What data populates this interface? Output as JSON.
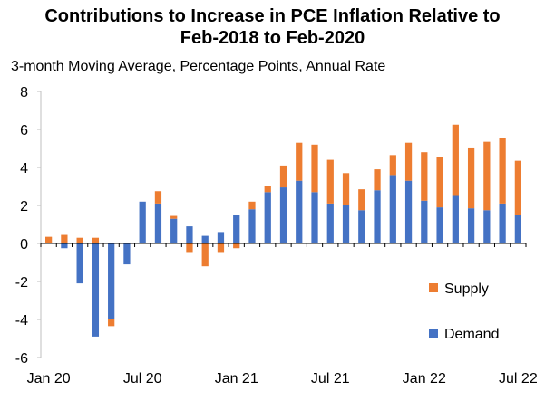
{
  "chart_data": {
    "type": "bar",
    "stacked": true,
    "title_line1": "Contributions to Increase in PCE Inflation Relative to",
    "title_line2": "Feb-2018 to Feb-2020",
    "subtitle": "3-month Moving Average, Percentage Points, Annual Rate",
    "ylim": [
      -6,
      8
    ],
    "yticks": [
      "8",
      "6",
      "4",
      "2",
      "0",
      "-2",
      "-4",
      "-6"
    ],
    "ytick_values": [
      8,
      6,
      4,
      2,
      0,
      -2,
      -4,
      -6
    ],
    "xtick_labels": [
      "Jan 20",
      "Jul 20",
      "Jan 21",
      "Jul 21",
      "Jan 22",
      "Jul 22"
    ],
    "xtick_indices": [
      0,
      6,
      12,
      18,
      24,
      30
    ],
    "categories": [
      "Jan 20",
      "Feb 20",
      "Mar 20",
      "Apr 20",
      "May 20",
      "Jun 20",
      "Jul 20",
      "Aug 20",
      "Sep 20",
      "Oct 20",
      "Nov 20",
      "Dec 20",
      "Jan 21",
      "Feb 21",
      "Mar 21",
      "Apr 21",
      "May 21",
      "Jun 21",
      "Jul 21",
      "Aug 21",
      "Sep 21",
      "Oct 21",
      "Nov 21",
      "Dec 21",
      "Jan 22",
      "Feb 22",
      "Mar 22",
      "Apr 22",
      "May 22",
      "Jun 22",
      "Jul 22"
    ],
    "series": [
      {
        "name": "Demand",
        "color": "#4472c4",
        "values": [
          0,
          -0.25,
          -2.1,
          -4.9,
          -4.0,
          -1.1,
          2.2,
          2.1,
          1.3,
          0.9,
          0.4,
          0.6,
          1.5,
          1.8,
          2.7,
          2.95,
          3.3,
          2.7,
          2.1,
          2.0,
          1.75,
          2.8,
          3.6,
          3.3,
          2.25,
          1.9,
          2.5,
          1.85,
          1.75,
          2.1,
          1.5
        ]
      },
      {
        "name": "Supply",
        "color": "#ed7d31",
        "values": [
          0.35,
          0.45,
          0.3,
          0.3,
          -0.35,
          0,
          0,
          0.65,
          0.15,
          -0.45,
          -1.2,
          -0.45,
          -0.25,
          0.4,
          0.3,
          1.15,
          2.0,
          2.5,
          2.3,
          1.7,
          1.1,
          1.1,
          1.05,
          2.0,
          2.55,
          2.65,
          3.75,
          3.2,
          3.6,
          3.45,
          2.85
        ]
      }
    ],
    "legend": {
      "supply": "Supply",
      "demand": "Demand",
      "position": "bottom-right"
    }
  }
}
